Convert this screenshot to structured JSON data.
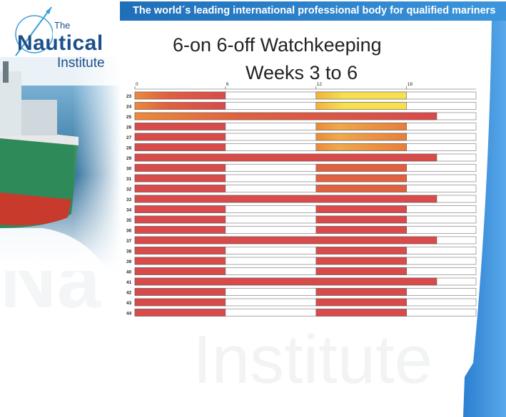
{
  "banner": {
    "text": "The world´s leading international professional body for qualified mariners"
  },
  "logo": {
    "the": "The",
    "nautical": "Nautical",
    "institute": "Institute"
  },
  "watermark": {
    "text": "Institute",
    "text2": "Na"
  },
  "colors": {
    "banner": "#2f86cf",
    "watch_red": "#d94a4a",
    "watch_orange": "#ec8a3a",
    "watch_yellow": "#f7df4f",
    "off_white": "#ffffff"
  },
  "chart_data": {
    "type": "bar",
    "orientation": "horizontal-timeline",
    "title": "6-on 6-off Watchkeeping",
    "subtitle": "Weeks 3 to 6",
    "x_ticks": [
      "0",
      "6",
      "12",
      "18"
    ],
    "xlim": [
      0,
      22.6
    ],
    "categories": [
      "23",
      "24",
      "25",
      "26",
      "27",
      "28",
      "29",
      "30",
      "31",
      "32",
      "33",
      "34",
      "35",
      "36",
      "37",
      "38",
      "39",
      "40",
      "41",
      "42",
      "43",
      "44"
    ],
    "series": [
      {
        "values": [
          [
            0,
            6
          ],
          [
            12,
            18
          ]
        ]
      },
      {
        "values": [
          [
            0,
            6
          ],
          [
            12,
            18
          ]
        ]
      },
      {
        "values": [
          [
            0,
            20
          ]
        ]
      },
      {
        "values": [
          [
            0,
            6
          ],
          [
            12,
            18
          ]
        ]
      },
      {
        "values": [
          [
            0,
            6
          ],
          [
            12,
            18
          ]
        ]
      },
      {
        "values": [
          [
            0,
            6
          ],
          [
            12,
            18
          ]
        ]
      },
      {
        "values": [
          [
            0,
            20
          ]
        ]
      },
      {
        "values": [
          [
            0,
            6
          ],
          [
            12,
            18
          ]
        ]
      },
      {
        "values": [
          [
            0,
            6
          ],
          [
            12,
            18
          ]
        ]
      },
      {
        "values": [
          [
            0,
            6
          ],
          [
            12,
            18
          ]
        ]
      },
      {
        "values": [
          [
            0,
            20
          ]
        ]
      },
      {
        "values": [
          [
            0,
            6
          ],
          [
            12,
            18
          ]
        ]
      },
      {
        "values": [
          [
            0,
            6
          ],
          [
            12,
            18
          ]
        ]
      },
      {
        "values": [
          [
            0,
            6
          ],
          [
            12,
            18
          ]
        ]
      },
      {
        "values": [
          [
            0,
            20
          ]
        ]
      },
      {
        "values": [
          [
            0,
            6
          ],
          [
            12,
            18
          ]
        ]
      },
      {
        "values": [
          [
            0,
            6
          ],
          [
            12,
            18
          ]
        ]
      },
      {
        "values": [
          [
            0,
            6
          ],
          [
            12,
            18
          ]
        ]
      },
      {
        "values": [
          [
            0,
            20
          ]
        ]
      },
      {
        "values": [
          [
            0,
            6
          ],
          [
            12,
            18
          ]
        ]
      },
      {
        "values": [
          [
            0,
            6
          ],
          [
            12,
            18
          ]
        ]
      },
      {
        "values": [
          [
            0,
            6
          ],
          [
            12,
            18
          ]
        ]
      }
    ],
    "grid": false,
    "legend": "none"
  }
}
